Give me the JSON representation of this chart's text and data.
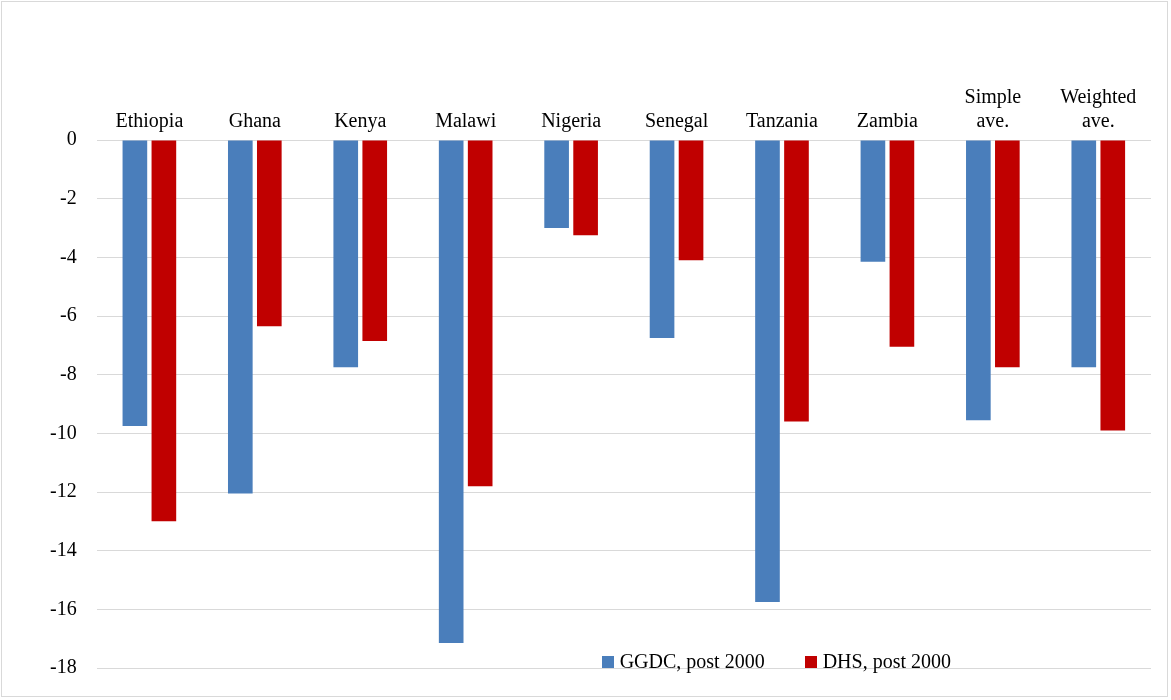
{
  "chart_data": {
    "type": "bar",
    "categories": [
      "Ethiopia",
      "Ghana",
      "Kenya",
      "Malawi",
      "Nigeria",
      "Senegal",
      "Tanzania",
      "Zambia",
      "Simple ave.",
      "Weighted ave."
    ],
    "series": [
      {
        "name": "GGDC, post 2000",
        "color": "#4a7ebb",
        "values": [
          -9.75,
          -12.05,
          -7.75,
          -17.15,
          -3.0,
          -6.75,
          -15.75,
          -4.15,
          -9.55,
          -7.75
        ]
      },
      {
        "name": "DHS, post 2000",
        "color": "#c00000",
        "values": [
          -13.0,
          -6.35,
          -6.85,
          -11.8,
          -3.25,
          -4.1,
          -9.6,
          -7.05,
          -7.75,
          -9.9
        ]
      }
    ],
    "ylim": [
      -18,
      0
    ],
    "yticks": [
      -18,
      -16,
      -14,
      -12,
      -10,
      -8,
      -6,
      -4,
      -2,
      0
    ],
    "grid": "y",
    "legend": "bottom right"
  }
}
